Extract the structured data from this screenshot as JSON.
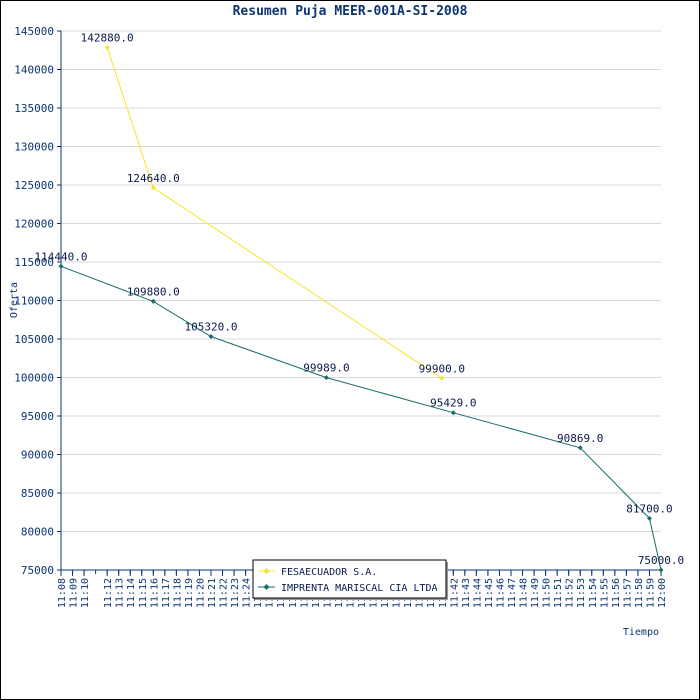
{
  "chart_data": {
    "type": "line",
    "title": "Resumen Puja MEER-001A-SI-2008",
    "xlabel": "Tiempo",
    "ylabel": "Oferta",
    "ylim": [
      75000,
      145000
    ],
    "yticks": [
      75000,
      80000,
      85000,
      90000,
      95000,
      100000,
      105000,
      110000,
      115000,
      120000,
      125000,
      130000,
      135000,
      140000,
      145000
    ],
    "xlim": [
      "11:08",
      "12:00"
    ],
    "xticks": [
      "11:08",
      "11:09",
      "11:10",
      "11:12",
      "11:13",
      "11:14",
      "11:15",
      "11:16",
      "11:17",
      "11:18",
      "11:19",
      "11:20",
      "11:21",
      "11:22",
      "11:23",
      "11:24",
      "11:25",
      "11:26",
      "11:27",
      "11:28",
      "11:29",
      "11:30",
      "11:31",
      "11:32",
      "11:33",
      "11:34",
      "11:35",
      "11:36",
      "11:37",
      "11:38",
      "11:39",
      "11:40",
      "11:41",
      "11:42",
      "11:43",
      "11:44",
      "11:45",
      "11:46",
      "11:47",
      "11:48",
      "11:49",
      "11:50",
      "11:51",
      "11:52",
      "11:53",
      "11:54",
      "11:55",
      "11:56",
      "11:57",
      "11:58",
      "11:59",
      "12:00"
    ],
    "grid": true,
    "legend_position": "bottom-center",
    "series": [
      {
        "name": "FESAECUADOR S.A.",
        "color": "#f5e52a",
        "points": [
          {
            "x": "11:12",
            "y": 142880,
            "label": "142880.0"
          },
          {
            "x": "11:16",
            "y": 124640,
            "label": "124640.0"
          },
          {
            "x": "11:41",
            "y": 99900,
            "label": "99900.0"
          }
        ]
      },
      {
        "name": "IMPRENTA MARISCAL CIA LTDA",
        "color": "#1a6b6b",
        "points": [
          {
            "x": "11:08",
            "y": 114440,
            "label": "114440.0"
          },
          {
            "x": "11:16",
            "y": 109880,
            "label": "109880.0"
          },
          {
            "x": "11:21",
            "y": 105320,
            "label": "105320.0"
          },
          {
            "x": "11:31",
            "y": 99989,
            "label": "99989.0"
          },
          {
            "x": "11:42",
            "y": 95429,
            "label": "95429.0"
          },
          {
            "x": "11:53",
            "y": 90869,
            "label": "90869.0"
          },
          {
            "x": "11:59",
            "y": 81700,
            "label": "81700.0"
          },
          {
            "x": "12:00",
            "y": 75000,
            "label": "75000.0"
          }
        ]
      }
    ]
  }
}
